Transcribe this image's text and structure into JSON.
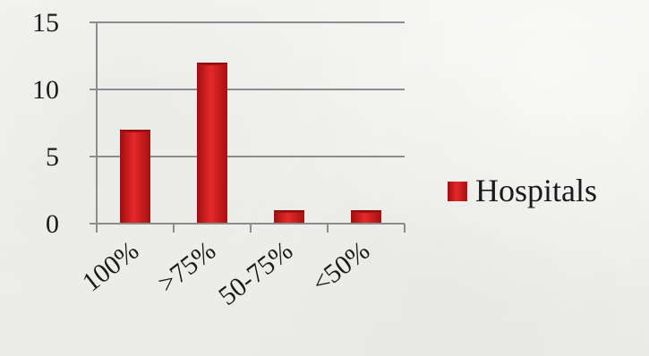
{
  "chart_data": {
    "type": "bar",
    "categories": [
      "100%",
      ">75%",
      "50-75%",
      "<50%"
    ],
    "series": [
      {
        "name": "Hospitals",
        "values": [
          7,
          12,
          1,
          1
        ],
        "color": "#cc1b1b"
      }
    ],
    "ylim": [
      0,
      15
    ],
    "yticks": [
      "0",
      "5",
      "10",
      "15"
    ],
    "grid": true,
    "legend": "right",
    "title": "",
    "xlabel": "",
    "ylabel": ""
  }
}
